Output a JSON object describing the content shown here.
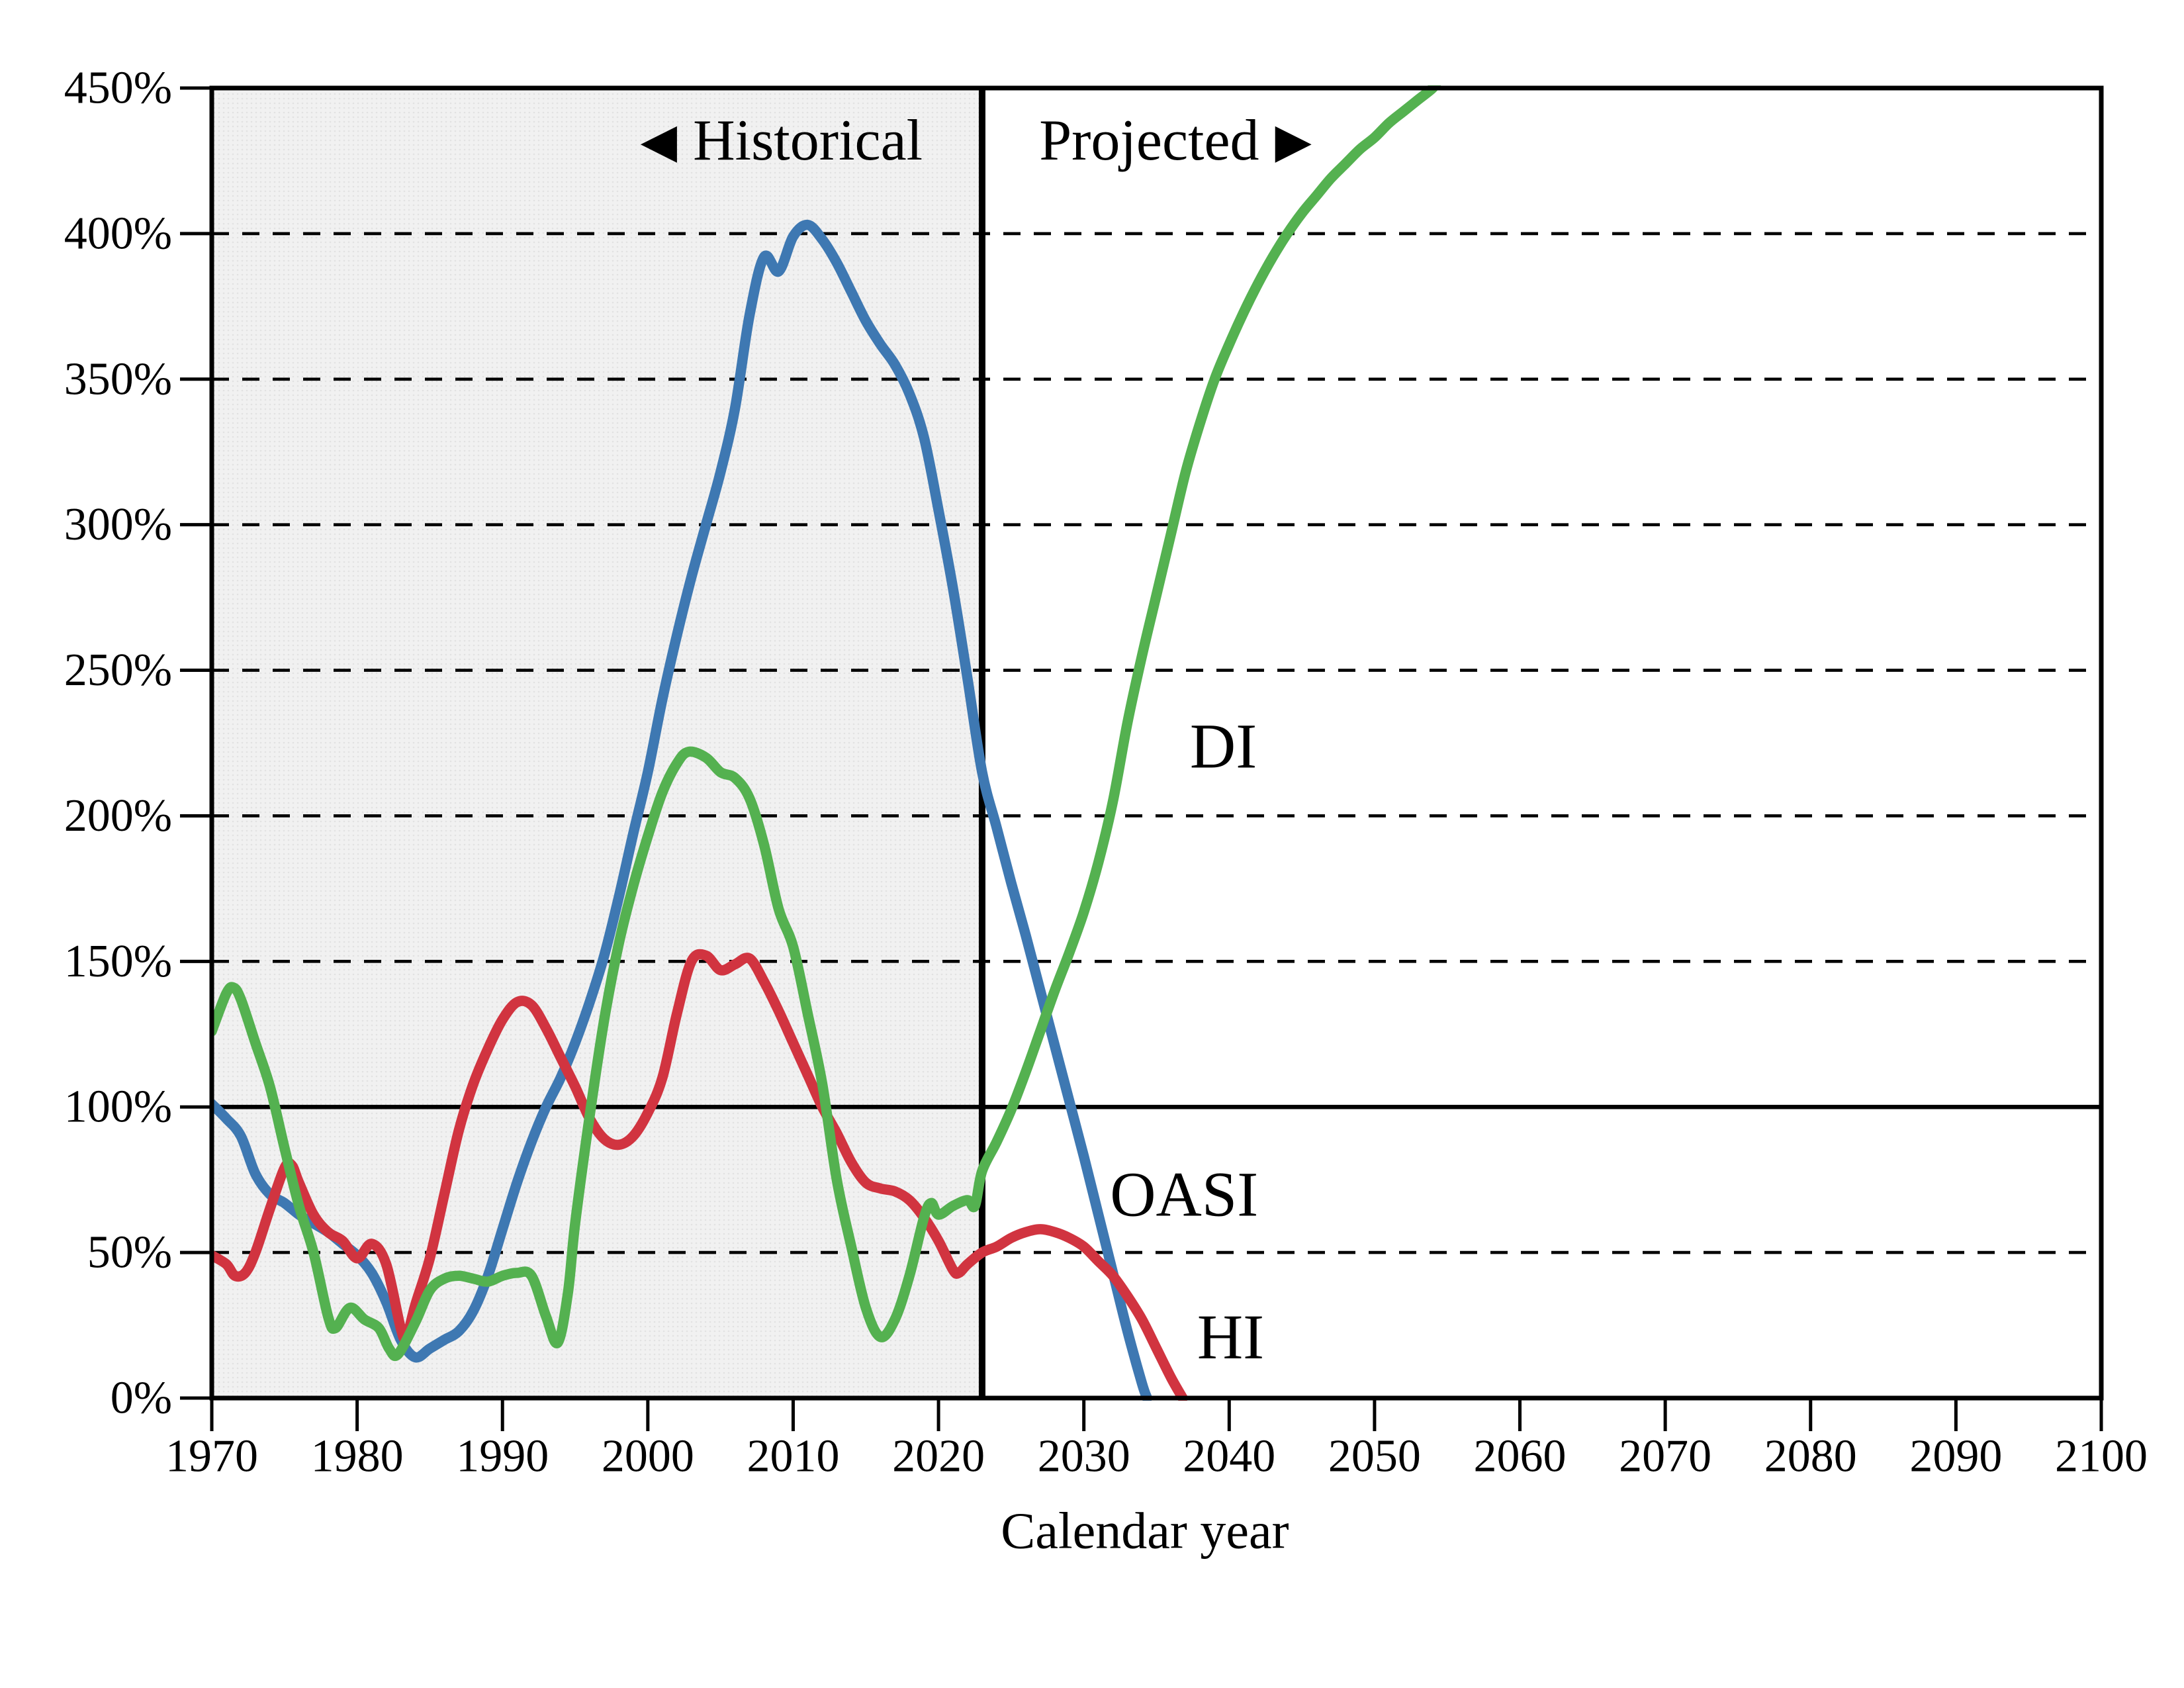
{
  "chart_data": {
    "type": "line",
    "title": "",
    "xlabel": "Calendar year",
    "ylabel": "",
    "y_axis_unit": "%",
    "xlim": [
      1970,
      2100
    ],
    "ylim": [
      0,
      450
    ],
    "x_ticks": [
      1970,
      1980,
      1990,
      2000,
      2010,
      2020,
      2030,
      2040,
      2050,
      2060,
      2070,
      2080,
      2090,
      2100
    ],
    "y_ticks": [
      0,
      50,
      100,
      150,
      200,
      250,
      300,
      350,
      400,
      450
    ],
    "y_tick_labels": [
      "0%",
      "50%",
      "100%",
      "150%",
      "200%",
      "250%",
      "300%",
      "350%",
      "400%",
      "450%"
    ],
    "grid": {
      "horizontal_dashed_at": [
        50,
        150,
        200,
        250,
        300,
        350,
        400
      ],
      "horizontal_solid_at": [
        100
      ]
    },
    "legend_position": "inline-labels",
    "historical_region": {
      "from": 1970,
      "to": 2023
    },
    "boundary_year": 2023,
    "region_labels": {
      "historical": {
        "arrow": "◀",
        "text": "Historical",
        "year": 2009.2,
        "pct": 432,
        "color": "#6E6E6E"
      },
      "projected": {
        "text": "Projected",
        "arrow": "▶",
        "year": 2036.3,
        "pct": 432,
        "color": "#000000"
      }
    },
    "series": [
      {
        "name": "OASI",
        "color": "#3E78B2",
        "label": {
          "year": 2036.9,
          "pct": 70
        },
        "points": [
          [
            1970,
            101
          ],
          [
            1971,
            96
          ],
          [
            1972,
            90
          ],
          [
            1973,
            77
          ],
          [
            1974,
            70
          ],
          [
            1975,
            67
          ],
          [
            1976,
            63
          ],
          [
            1977,
            60
          ],
          [
            1978,
            57
          ],
          [
            1979,
            53
          ],
          [
            1980,
            49
          ],
          [
            1981,
            43
          ],
          [
            1982,
            33
          ],
          [
            1983,
            20
          ],
          [
            1984,
            14
          ],
          [
            1985,
            17
          ],
          [
            1986,
            20
          ],
          [
            1987,
            23
          ],
          [
            1988,
            30
          ],
          [
            1989,
            42
          ],
          [
            1990,
            58
          ],
          [
            1991,
            74
          ],
          [
            1992,
            88
          ],
          [
            1993,
            100
          ],
          [
            1994,
            110
          ],
          [
            1995,
            122
          ],
          [
            1996,
            136
          ],
          [
            1997,
            152
          ],
          [
            1998,
            172
          ],
          [
            1999,
            194
          ],
          [
            2000,
            215
          ],
          [
            2001,
            240
          ],
          [
            2002,
            262
          ],
          [
            2003,
            282
          ],
          [
            2004,
            300
          ],
          [
            2005,
            318
          ],
          [
            2006,
            340
          ],
          [
            2007,
            372
          ],
          [
            2008,
            392
          ],
          [
            2009,
            387
          ],
          [
            2010,
            399
          ],
          [
            2011,
            403
          ],
          [
            2012,
            398
          ],
          [
            2013,
            390
          ],
          [
            2014,
            380
          ],
          [
            2015,
            370
          ],
          [
            2016,
            362
          ],
          [
            2017,
            355
          ],
          [
            2018,
            345
          ],
          [
            2019,
            330
          ],
          [
            2020,
            305
          ],
          [
            2021,
            278
          ],
          [
            2022,
            247
          ],
          [
            2023,
            215
          ],
          [
            2024,
            196
          ],
          [
            2025,
            177
          ],
          [
            2026,
            159
          ],
          [
            2027,
            140
          ],
          [
            2028,
            121
          ],
          [
            2029,
            102
          ],
          [
            2030,
            83
          ],
          [
            2031,
            63
          ],
          [
            2032,
            43
          ],
          [
            2033,
            23
          ],
          [
            2034,
            5
          ],
          [
            2034.35,
            0
          ]
        ]
      },
      {
        "name": "DI",
        "color": "#54B150",
        "label": {
          "year": 2039.6,
          "pct": 224
        },
        "points": [
          [
            1970,
            126
          ],
          [
            1971,
            139
          ],
          [
            1971.5,
            141
          ],
          [
            1972,
            137
          ],
          [
            1973,
            122
          ],
          [
            1974,
            107
          ],
          [
            1975,
            86
          ],
          [
            1976,
            66
          ],
          [
            1977,
            50
          ],
          [
            1978,
            28
          ],
          [
            1978.5,
            24
          ],
          [
            1979.5,
            31
          ],
          [
            1980.5,
            27
          ],
          [
            1981.5,
            24
          ],
          [
            1982.2,
            17
          ],
          [
            1982.8,
            15
          ],
          [
            1984,
            26
          ],
          [
            1985,
            37
          ],
          [
            1986,
            41
          ],
          [
            1987,
            42
          ],
          [
            1988,
            41
          ],
          [
            1989,
            40
          ],
          [
            1990,
            42
          ],
          [
            1991,
            43
          ],
          [
            1992,
            42
          ],
          [
            1993,
            28
          ],
          [
            1993.8,
            19
          ],
          [
            1994.5,
            36
          ],
          [
            1995,
            60
          ],
          [
            1996,
            97
          ],
          [
            1997,
            130
          ],
          [
            1998,
            156
          ],
          [
            1999,
            176
          ],
          [
            2000,
            193
          ],
          [
            2001,
            208
          ],
          [
            2002,
            218
          ],
          [
            2002.8,
            222
          ],
          [
            2004,
            220
          ],
          [
            2005,
            215
          ],
          [
            2006,
            213
          ],
          [
            2007,
            206
          ],
          [
            2008,
            190
          ],
          [
            2009,
            168
          ],
          [
            2010,
            155
          ],
          [
            2011,
            132
          ],
          [
            2012,
            108
          ],
          [
            2013,
            75
          ],
          [
            2014,
            52
          ],
          [
            2015,
            31
          ],
          [
            2016,
            21
          ],
          [
            2017,
            27
          ],
          [
            2018,
            42
          ],
          [
            2019,
            62
          ],
          [
            2019.5,
            67
          ],
          [
            2020,
            63
          ],
          [
            2021,
            66
          ],
          [
            2022,
            68
          ],
          [
            2022.5,
            66
          ],
          [
            2023,
            78
          ],
          [
            2024,
            88
          ],
          [
            2025,
            99
          ],
          [
            2026,
            112
          ],
          [
            2027,
            126
          ],
          [
            2028,
            140
          ],
          [
            2029,
            153
          ],
          [
            2030,
            167
          ],
          [
            2031,
            184
          ],
          [
            2032,
            205
          ],
          [
            2033,
            232
          ],
          [
            2034,
            255
          ],
          [
            2035,
            276
          ],
          [
            2036,
            297
          ],
          [
            2037,
            318
          ],
          [
            2038,
            335
          ],
          [
            2039,
            350
          ],
          [
            2040,
            362
          ],
          [
            2041,
            373
          ],
          [
            2042,
            383
          ],
          [
            2043,
            392
          ],
          [
            2044,
            400
          ],
          [
            2045,
            407
          ],
          [
            2046,
            413
          ],
          [
            2047,
            419
          ],
          [
            2048,
            424
          ],
          [
            2049,
            429
          ],
          [
            2050,
            433
          ],
          [
            2051,
            438
          ],
          [
            2052,
            442
          ],
          [
            2053,
            446
          ],
          [
            2054,
            450
          ],
          [
            2054.4,
            453
          ]
        ]
      },
      {
        "name": "HI",
        "color": "#D13440",
        "label": {
          "year": 2040.1,
          "pct": 21
        },
        "points": [
          [
            1970,
            49
          ],
          [
            1971,
            46
          ],
          [
            1971.6,
            42
          ],
          [
            1972.3,
            43
          ],
          [
            1973,
            50
          ],
          [
            1974,
            65
          ],
          [
            1975,
            79
          ],
          [
            1975.5,
            80
          ],
          [
            1976,
            74
          ],
          [
            1977,
            63
          ],
          [
            1978,
            57
          ],
          [
            1979,
            54
          ],
          [
            1980,
            48
          ],
          [
            1981,
            53
          ],
          [
            1982,
            46
          ],
          [
            1983,
            24
          ],
          [
            1983.4,
            21
          ],
          [
            1984,
            32
          ],
          [
            1985,
            48
          ],
          [
            1986,
            70
          ],
          [
            1987,
            92
          ],
          [
            1988,
            108
          ],
          [
            1989,
            120
          ],
          [
            1990,
            130
          ],
          [
            1991,
            136
          ],
          [
            1992,
            135
          ],
          [
            1993,
            127
          ],
          [
            1994,
            117
          ],
          [
            1995,
            107
          ],
          [
            1996,
            96
          ],
          [
            1997,
            89
          ],
          [
            1998,
            87
          ],
          [
            1999,
            90
          ],
          [
            2000,
            98
          ],
          [
            2001,
            110
          ],
          [
            2002,
            132
          ],
          [
            2003,
            150
          ],
          [
            2004,
            152
          ],
          [
            2005,
            147
          ],
          [
            2006,
            149
          ],
          [
            2007,
            151
          ],
          [
            2008,
            143
          ],
          [
            2009,
            133
          ],
          [
            2010,
            122
          ],
          [
            2011,
            111
          ],
          [
            2012,
            100
          ],
          [
            2013,
            91
          ],
          [
            2014,
            81
          ],
          [
            2015,
            74
          ],
          [
            2016,
            72
          ],
          [
            2017,
            71
          ],
          [
            2018,
            68
          ],
          [
            2019,
            62
          ],
          [
            2020,
            54
          ],
          [
            2021,
            44
          ],
          [
            2021.4,
            43
          ],
          [
            2022,
            46
          ],
          [
            2023,
            50
          ],
          [
            2024,
            52
          ],
          [
            2025,
            55
          ],
          [
            2026,
            57
          ],
          [
            2027,
            58
          ],
          [
            2028,
            57
          ],
          [
            2029,
            55
          ],
          [
            2030,
            52
          ],
          [
            2031,
            47
          ],
          [
            2032,
            42
          ],
          [
            2033,
            35
          ],
          [
            2034,
            27
          ],
          [
            2035,
            17
          ],
          [
            2036,
            7
          ],
          [
            2036.8,
            0
          ]
        ]
      }
    ],
    "styles": {
      "historical_region_bg": "#F1F1F1",
      "historical_region_dot": "#E2E2E2",
      "frame_color": "#000000",
      "grid_color": "#000000",
      "curve_width": 15.5
    }
  }
}
